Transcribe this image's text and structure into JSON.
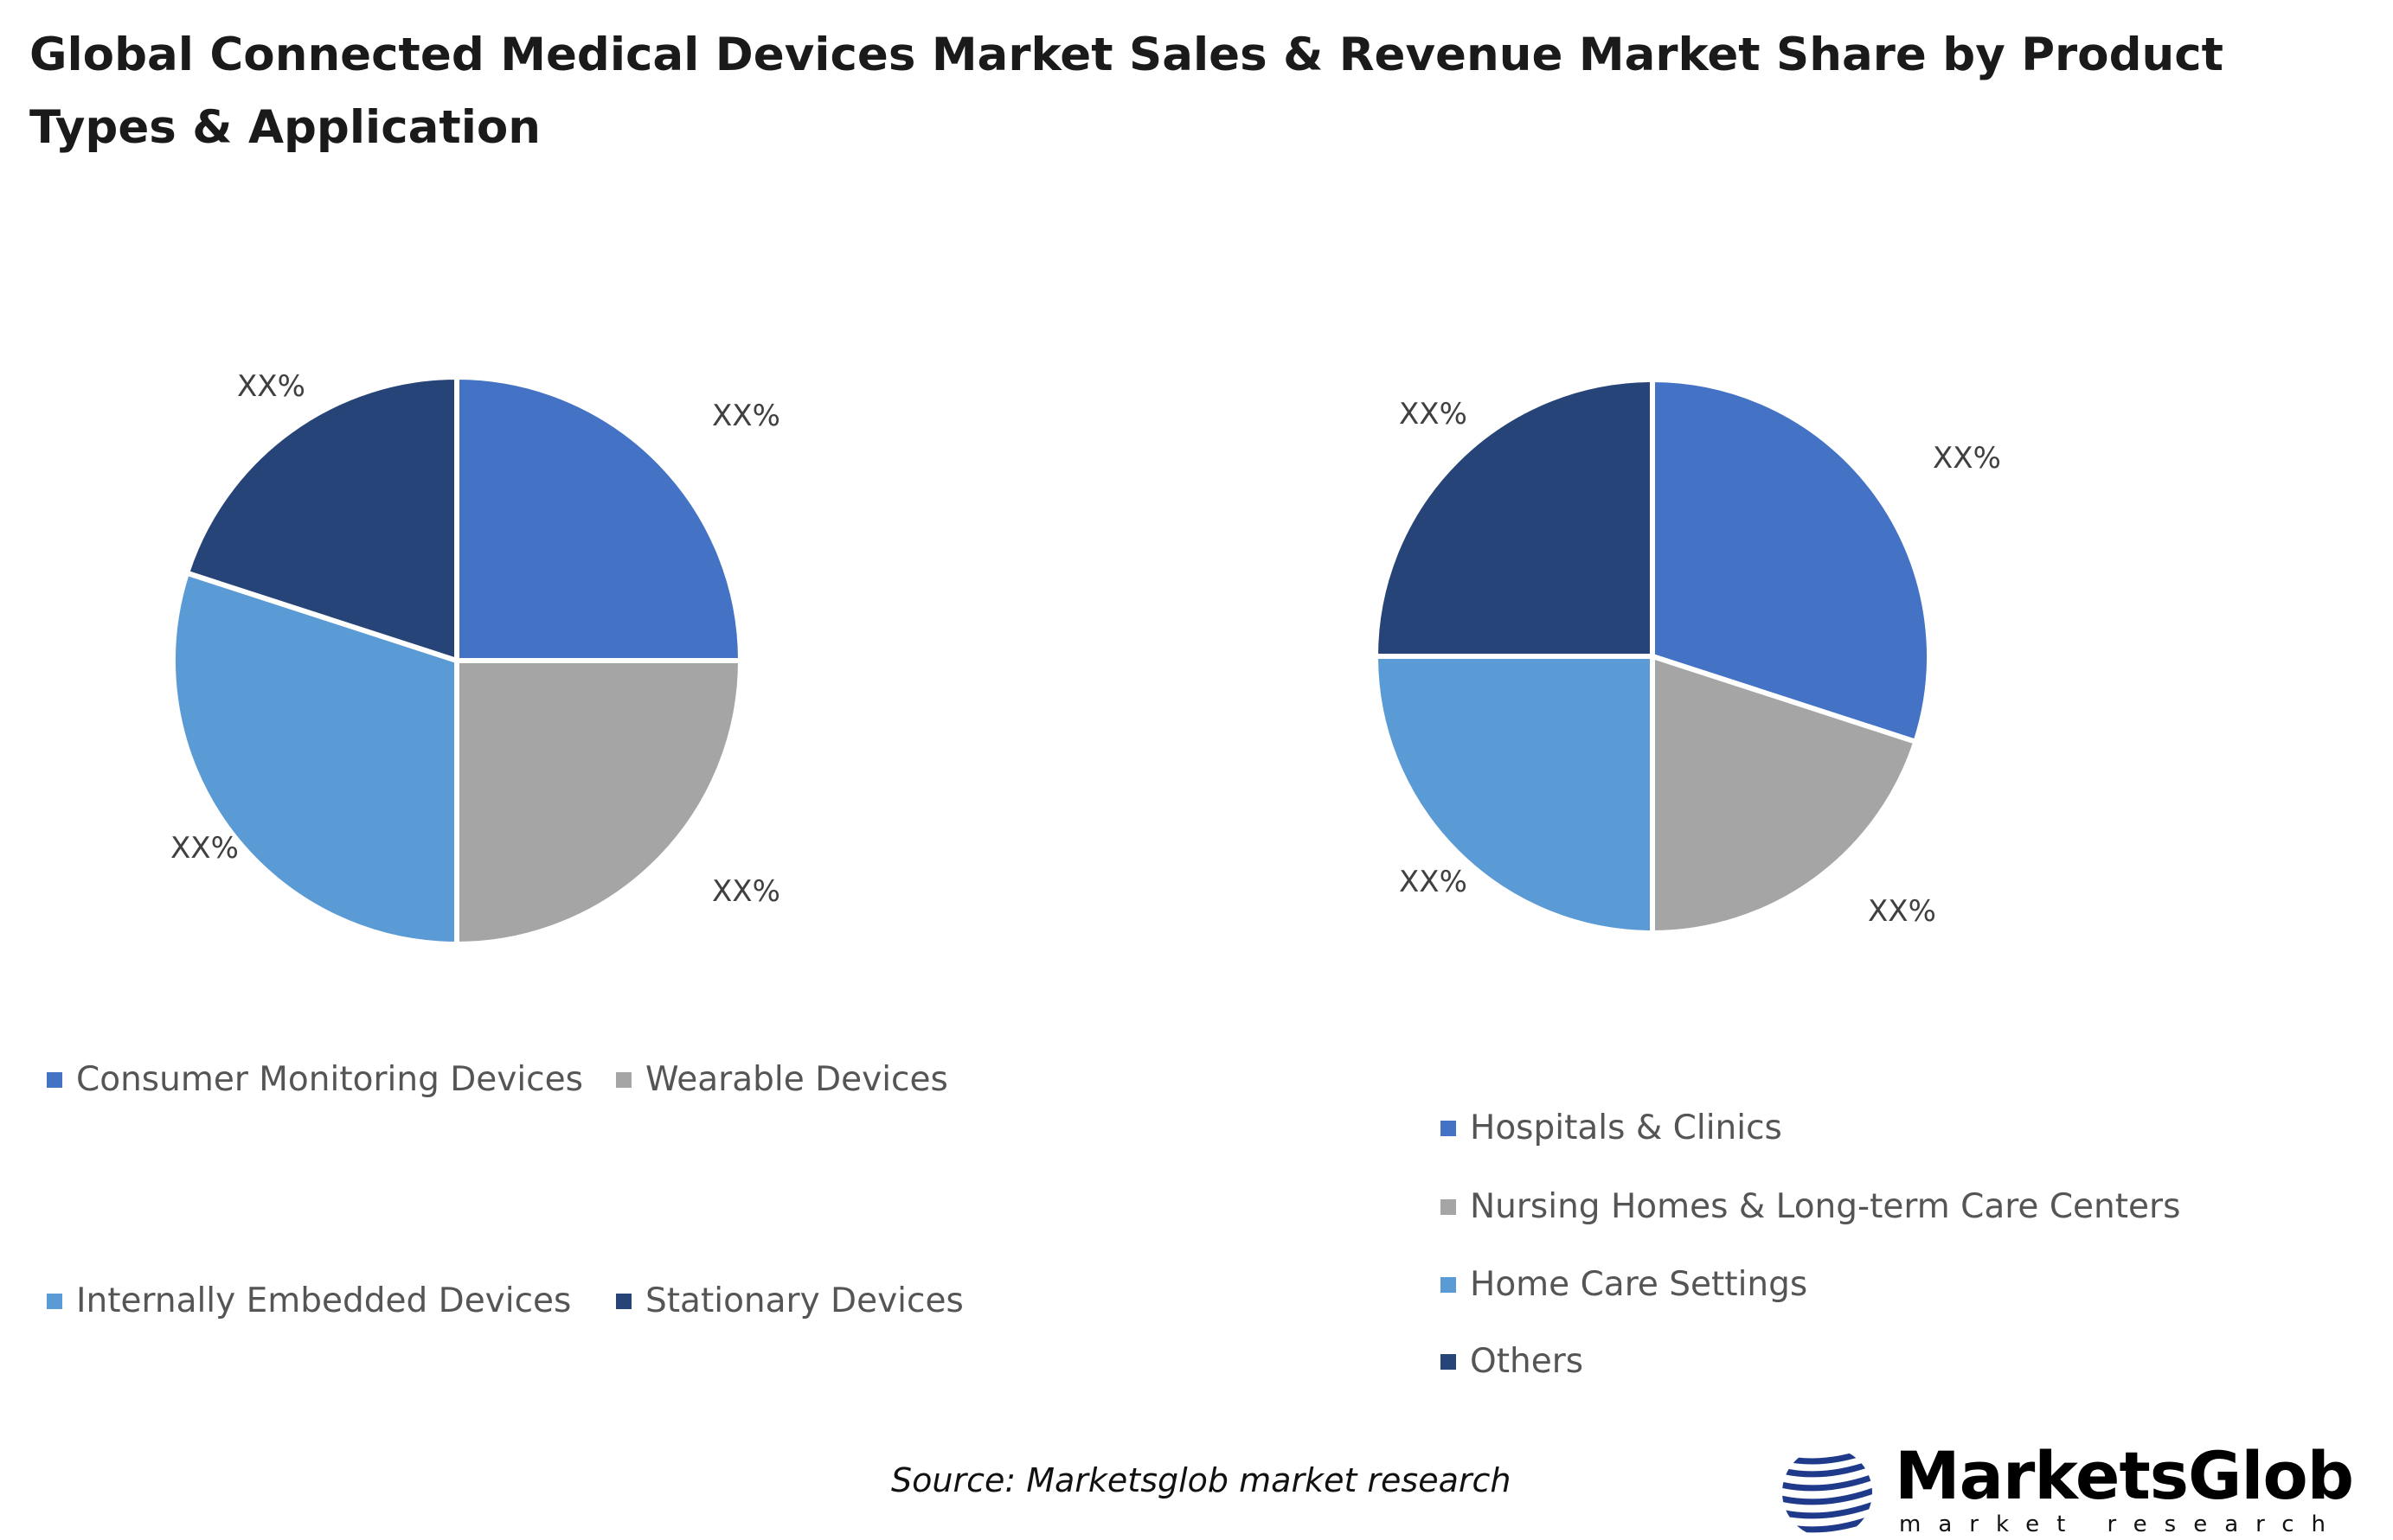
{
  "title": "Global Connected Medical Devices Market Sales & Revenue Market Share by Product Types & Application",
  "chart_data": [
    {
      "type": "pie",
      "categories": [
        "Consumer Monitoring Devices",
        "Wearable Devices",
        "Internally Embedded Devices",
        "Stationary Devices"
      ],
      "values": [
        25,
        25,
        30,
        20
      ],
      "data_labels": [
        "XX%",
        "XX%",
        "XX%",
        "XX%"
      ],
      "colors": [
        "#4472C4",
        "#A5A5A5",
        "#5B9BD5",
        "#264478"
      ],
      "legend_position": "bottom"
    },
    {
      "type": "pie",
      "categories": [
        "Hospitals & Clinics",
        "Nursing Homes & Long-term Care Centers",
        "Home Care Settings",
        "Others"
      ],
      "values": [
        30,
        20,
        25,
        25
      ],
      "data_labels": [
        "XX%",
        "XX%",
        "XX%",
        "XX%"
      ],
      "colors": [
        "#4472C4",
        "#A5A5A5",
        "#5B9BD5",
        "#264478"
      ],
      "legend_position": "bottom"
    }
  ],
  "source": "Source: Marketsglob market research",
  "logo": {
    "name": "MarketsGlob",
    "tagline": "market research",
    "icon": "globe-stripes-icon"
  }
}
